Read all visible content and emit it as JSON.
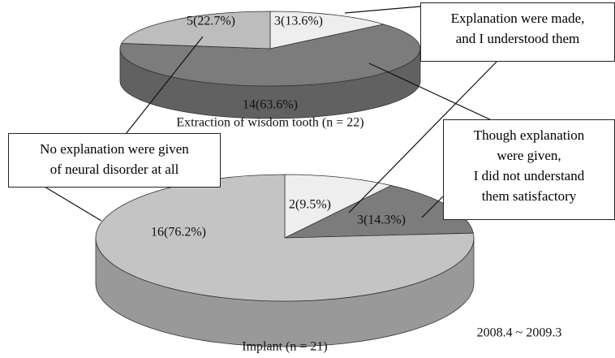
{
  "chart_data": [
    {
      "type": "pie3d",
      "title": "Extraction of wisdom tooth (n = 22)",
      "categories": [
        [
          "Explanation were made,",
          "and I understood them"
        ],
        [
          "Though explanation",
          "were given,",
          "I did not understand",
          "them satisfactory"
        ],
        [
          "No explanation were given",
          "of neural disorder at all"
        ]
      ],
      "values": [
        3,
        14,
        5
      ],
      "value_labels": [
        "3(13.6%)",
        "14(63.6%)",
        "5(22.7%)"
      ],
      "colors": [
        "#eeeeee",
        "#7c7c7c",
        "#bdbdbd"
      ]
    },
    {
      "type": "pie3d",
      "title": "Implant (n = 21)",
      "values": [
        2,
        3,
        16
      ],
      "value_labels": [
        "2(9.5%)",
        "3(14.3%)",
        "16(76.2%)"
      ],
      "colors": [
        "#eeeeee",
        "#7c7c7c",
        "#c4c4c4"
      ]
    }
  ],
  "annotation": "2008.4 ~ 2009.3"
}
